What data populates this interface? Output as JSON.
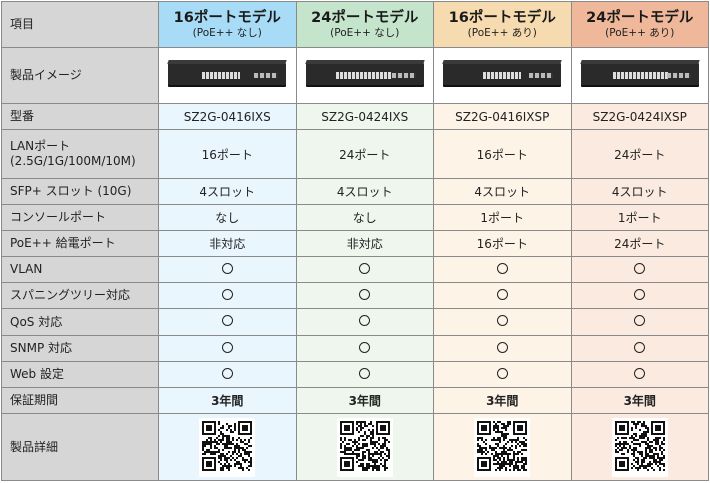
{
  "header": {
    "label": "項目",
    "models": [
      {
        "title": "16ポートモデル",
        "sub": "(PoE++ なし)",
        "color": "#a8dcf6"
      },
      {
        "title": "24ポートモデル",
        "sub": "(PoE++ なし)",
        "color": "#c4e5cb"
      },
      {
        "title": "16ポートモデル",
        "sub": "(PoE++ あり)",
        "color": "#f5dbaf"
      },
      {
        "title": "24ポートモデル",
        "sub": "(PoE++ あり)",
        "color": "#efb89b"
      }
    ]
  },
  "rows": {
    "image": {
      "label": "製品イメージ"
    },
    "model": {
      "label": "型番",
      "values": [
        "SZ2G-0416IXS",
        "SZ2G-0424IXS",
        "SZ2G-0416IXSP",
        "SZ2G-0424IXSP"
      ]
    },
    "lan": {
      "label": "LANポート",
      "label2": "(2.5G/1G/100M/10M)",
      "values": [
        "16ポート",
        "24ポート",
        "16ポート",
        "24ポート"
      ]
    },
    "sfp": {
      "label": "SFP+ スロット (10G)",
      "values": [
        "4スロット",
        "4スロット",
        "4スロット",
        "4スロット"
      ]
    },
    "console": {
      "label": "コンソールポート",
      "values": [
        "なし",
        "なし",
        "1ポート",
        "1ポート"
      ]
    },
    "poe": {
      "label": "PoE++ 給電ポート",
      "values": [
        "非対応",
        "非対応",
        "16ポート",
        "24ポート"
      ]
    },
    "vlan": {
      "label": "VLAN",
      "values": [
        "○",
        "○",
        "○",
        "○"
      ]
    },
    "stp": {
      "label": "スパニングツリー対応",
      "values": [
        "○",
        "○",
        "○",
        "○"
      ]
    },
    "qos": {
      "label": "QoS 対応",
      "values": [
        "○",
        "○",
        "○",
        "○"
      ]
    },
    "snmp": {
      "label": "SNMP 対応",
      "values": [
        "○",
        "○",
        "○",
        "○"
      ]
    },
    "web": {
      "label": "Web 設定",
      "values": [
        "○",
        "○",
        "○",
        "○"
      ]
    },
    "warranty": {
      "label": "保証期間",
      "values": [
        "3年間",
        "3年間",
        "3年間",
        "3年間"
      ]
    },
    "detail": {
      "label": "製品詳細",
      "qr_icon": "qr-code-icon"
    }
  }
}
